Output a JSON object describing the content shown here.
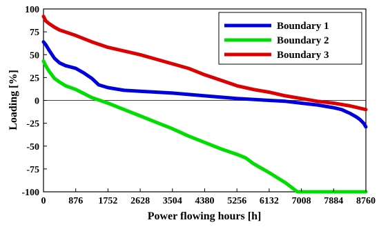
{
  "chart_data": {
    "type": "line",
    "title": "",
    "xlabel": "Power flowing hours [h]",
    "ylabel": "Loading [%]",
    "xlim": [
      0,
      8760
    ],
    "ylim": [
      -100,
      100
    ],
    "xticks": [
      0,
      876,
      1752,
      2628,
      3504,
      4380,
      5256,
      6132,
      7008,
      7884,
      8760
    ],
    "yticks": [
      100,
      75,
      50,
      25,
      0,
      -25,
      -50,
      -75,
      -100
    ],
    "legend_position": "top-right",
    "grid": false,
    "series": [
      {
        "name": "Boundary 1",
        "color": "#0000dd",
        "x": [
          0,
          60,
          150,
          300,
          438,
          600,
          876,
          1100,
          1314,
          1500,
          1752,
          2190,
          2628,
          3504,
          4380,
          5256,
          6132,
          6570,
          7008,
          7446,
          7884,
          8100,
          8322,
          8500,
          8600,
          8700,
          8760
        ],
        "y": [
          64,
          61,
          55,
          46,
          41,
          38,
          35,
          30,
          24,
          17,
          14,
          11,
          10,
          8,
          5,
          2,
          0,
          -1,
          -3,
          -5,
          -8,
          -10,
          -14,
          -18,
          -21,
          -25,
          -29
        ]
      },
      {
        "name": "Boundary 2",
        "color": "#00dd00",
        "x": [
          0,
          60,
          150,
          300,
          438,
          600,
          876,
          1314,
          1752,
          2190,
          2628,
          3066,
          3504,
          3942,
          4380,
          4818,
          5256,
          5500,
          5694,
          6132,
          6570,
          6900,
          7008,
          7884,
          8760
        ],
        "y": [
          43,
          38,
          32,
          24,
          20,
          16,
          12,
          3,
          -3,
          -10,
          -17,
          -24,
          -31,
          -39,
          -46,
          -53,
          -59,
          -63,
          -69,
          -79,
          -90,
          -100,
          -100,
          -100,
          -100
        ]
      },
      {
        "name": "Boundary 3",
        "color": "#dd0000",
        "x": [
          0,
          60,
          150,
          300,
          438,
          876,
          1314,
          1752,
          2190,
          2628,
          3066,
          3504,
          3942,
          4380,
          4818,
          5256,
          5694,
          6132,
          6570,
          7008,
          7446,
          7884,
          8322,
          8760
        ],
        "y": [
          92,
          87,
          84,
          80,
          77,
          71,
          64,
          58,
          54,
          50,
          45,
          40,
          35,
          28,
          22,
          16,
          12,
          9,
          5,
          2,
          -1,
          -3,
          -6,
          -10
        ]
      }
    ]
  }
}
